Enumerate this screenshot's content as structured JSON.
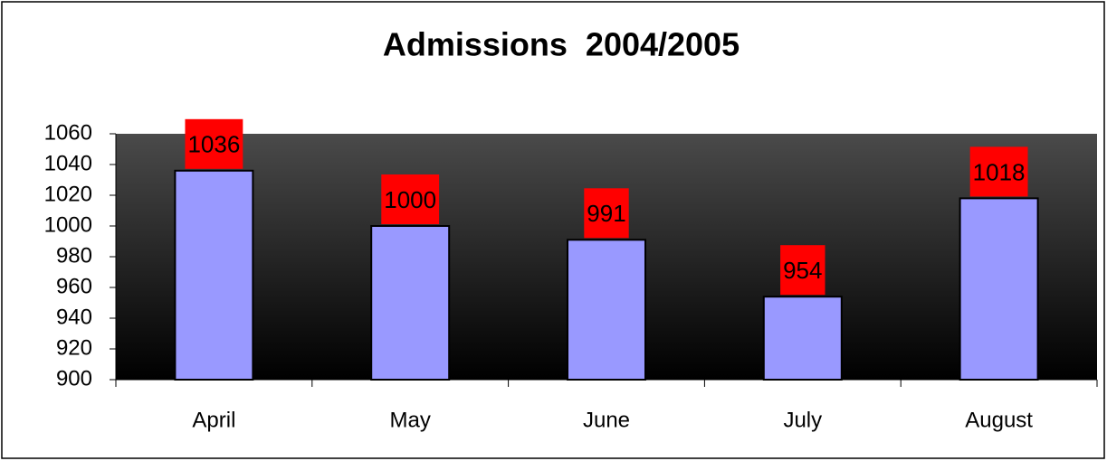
{
  "chart_data": {
    "type": "bar",
    "title": "Admissions  2004/2005",
    "categories": [
      "April",
      "May",
      "June",
      "July",
      "August"
    ],
    "values": [
      1036,
      1000,
      991,
      954,
      1018
    ],
    "color": "#9999ff",
    "label_background": "#ff0000",
    "ylim": [
      900,
      1060
    ],
    "yticks": [
      900,
      920,
      940,
      960,
      980,
      1000,
      1020,
      1040,
      1060
    ]
  }
}
